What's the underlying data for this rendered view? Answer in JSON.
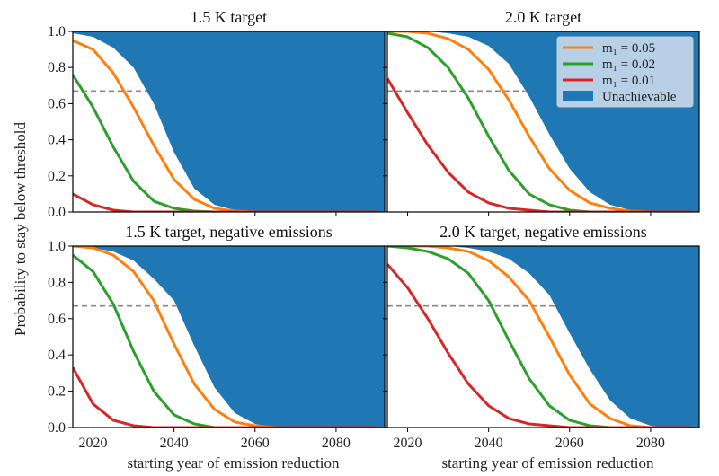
{
  "chart_data": {
    "type": "line",
    "ylabel": "Probability to stay below threshold",
    "xlabel": "starting year of emission reduction",
    "xlim": [
      2015,
      2092
    ],
    "ylim": [
      0,
      1
    ],
    "xticks": [
      2020,
      2040,
      2060,
      2080
    ],
    "yticks": [
      "0.0",
      "0.2",
      "0.4",
      "0.6",
      "0.8",
      "1.0"
    ],
    "threshold": 0.67,
    "grid": false,
    "legend_placement": "top-right of upper-right panel",
    "colors": {
      "m1_0.05": "#ff7f0e",
      "m1_0.02": "#2ca02c",
      "m1_0.01": "#d62728",
      "unachievable": "#1f77b4",
      "threshold": "#888888"
    },
    "legend": [
      "m₁ = 0.05",
      "m₁ = 0.02",
      "m₁ = 0.01",
      "Unachievable"
    ],
    "x": [
      2015,
      2020,
      2025,
      2030,
      2035,
      2040,
      2045,
      2050,
      2055,
      2060,
      2065,
      2070,
      2075,
      2080,
      2085,
      2090
    ],
    "panels": [
      {
        "title": "1.5 K target",
        "threshold_end_year": 2033,
        "unachievable_boundary": [
          0.99,
          0.97,
          0.91,
          0.8,
          0.6,
          0.33,
          0.13,
          0.04,
          0.01,
          0,
          0,
          0,
          0,
          0,
          0,
          0
        ],
        "series": [
          {
            "name": "m₁ = 0.05",
            "values": [
              0.95,
              0.9,
              0.77,
              0.58,
              0.37,
              0.18,
              0.07,
              0.02,
              0.005,
              0,
              0,
              0,
              0,
              0,
              0,
              0
            ]
          },
          {
            "name": "m₁ = 0.02",
            "values": [
              0.76,
              0.58,
              0.36,
              0.17,
              0.06,
              0.02,
              0.005,
              0,
              0,
              0,
              0,
              0,
              0,
              0,
              0,
              0
            ]
          },
          {
            "name": "m₁ = 0.01",
            "values": [
              0.1,
              0.04,
              0.01,
              0,
              0,
              0,
              0,
              0,
              0,
              0,
              0,
              0,
              0,
              0,
              0,
              0
            ]
          }
        ]
      },
      {
        "title": "2.0 K target",
        "threshold_end_year": 2049,
        "unachievable_boundary": [
          1,
          1,
          1,
          0.99,
          0.97,
          0.92,
          0.82,
          0.64,
          0.43,
          0.24,
          0.11,
          0.04,
          0.01,
          0,
          0,
          0
        ],
        "series": [
          {
            "name": "m₁ = 0.05",
            "values": [
              1,
              1,
              0.99,
              0.96,
              0.9,
              0.79,
              0.62,
              0.42,
              0.24,
              0.12,
              0.05,
              0.02,
              0.005,
              0,
              0,
              0
            ]
          },
          {
            "name": "m₁ = 0.02",
            "values": [
              0.99,
              0.97,
              0.91,
              0.8,
              0.63,
              0.42,
              0.23,
              0.1,
              0.04,
              0.01,
              0,
              0,
              0,
              0,
              0,
              0
            ]
          },
          {
            "name": "m₁ = 0.01",
            "values": [
              0.74,
              0.55,
              0.37,
              0.22,
              0.11,
              0.05,
              0.02,
              0.01,
              0,
              0,
              0,
              0,
              0,
              0,
              0,
              0
            ]
          }
        ]
      },
      {
        "title": "1.5 K target, negative emissions",
        "threshold_end_year": 2041,
        "unachievable_boundary": [
          1,
          0.99,
          0.97,
          0.92,
          0.82,
          0.7,
          0.45,
          0.22,
          0.08,
          0.02,
          0,
          0,
          0,
          0,
          0,
          0
        ],
        "series": [
          {
            "name": "m₁ = 0.05",
            "values": [
              1,
              0.99,
              0.95,
              0.86,
              0.7,
              0.46,
              0.24,
              0.1,
              0.03,
              0.01,
              0,
              0,
              0,
              0,
              0,
              0
            ]
          },
          {
            "name": "m₁ = 0.02",
            "values": [
              0.95,
              0.86,
              0.68,
              0.42,
              0.2,
              0.07,
              0.02,
              0,
              0,
              0,
              0,
              0,
              0,
              0,
              0,
              0
            ]
          },
          {
            "name": "m₁ = 0.01",
            "values": [
              0.33,
              0.13,
              0.04,
              0.01,
              0,
              0,
              0,
              0,
              0,
              0,
              0,
              0,
              0,
              0,
              0,
              0
            ]
          }
        ]
      },
      {
        "title": "2.0 K target, negative emissions",
        "threshold_end_year": 2057,
        "unachievable_boundary": [
          1,
          1,
          1,
          1,
          0.99,
          0.97,
          0.93,
          0.85,
          0.73,
          0.52,
          0.32,
          0.15,
          0.05,
          0.01,
          0,
          0
        ],
        "series": [
          {
            "name": "m₁ = 0.05",
            "values": [
              1,
              1,
              1,
              0.99,
              0.97,
              0.92,
              0.83,
              0.7,
              0.5,
              0.29,
              0.13,
              0.05,
              0.01,
              0,
              0,
              0
            ]
          },
          {
            "name": "m₁ = 0.02",
            "values": [
              1,
              0.99,
              0.97,
              0.93,
              0.85,
              0.7,
              0.48,
              0.27,
              0.12,
              0.04,
              0.01,
              0,
              0,
              0,
              0,
              0
            ]
          },
          {
            "name": "m₁ = 0.01",
            "values": [
              0.9,
              0.77,
              0.6,
              0.41,
              0.24,
              0.12,
              0.05,
              0.02,
              0.01,
              0,
              0,
              0,
              0,
              0,
              0,
              0
            ]
          }
        ]
      }
    ]
  }
}
